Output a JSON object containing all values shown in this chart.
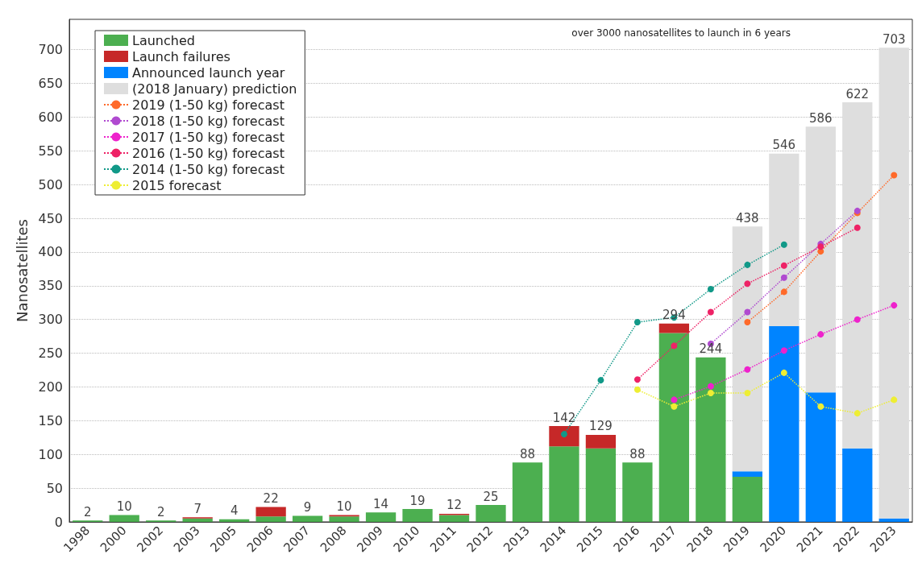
{
  "chart_data": {
    "type": "bar",
    "title": "over 3000 nanosatellites to launch in 6 years",
    "ylabel": "Nanosatellites",
    "categories": [
      "1998",
      "2000",
      "2002",
      "2003",
      "2005",
      "2006",
      "2007",
      "2008",
      "2009",
      "2010",
      "2011",
      "2012",
      "2013",
      "2014",
      "2015",
      "2016",
      "2017",
      "2018",
      "2019",
      "2020",
      "2021",
      "2022",
      "2023"
    ],
    "stacked": true,
    "series": [
      {
        "name": "Launched",
        "color": "#4caf50",
        "values": [
          2,
          10,
          2,
          5,
          4,
          8,
          9,
          8,
          14,
          19,
          10,
          25,
          88,
          112,
          109,
          88,
          280,
          244,
          67,
          null,
          null,
          null,
          null
        ]
      },
      {
        "name": "Launch failures",
        "color": "#c62828",
        "values": [
          null,
          null,
          null,
          2,
          null,
          14,
          null,
          2,
          null,
          null,
          2,
          null,
          null,
          30,
          20,
          null,
          14,
          null,
          null,
          null,
          null,
          null,
          null
        ]
      },
      {
        "name": "Announced launch year",
        "color": "#0084ff",
        "values": [
          null,
          null,
          null,
          null,
          null,
          null,
          null,
          null,
          null,
          null,
          null,
          null,
          null,
          null,
          null,
          null,
          null,
          null,
          8,
          290,
          192,
          109,
          5
        ]
      },
      {
        "name": "(2018 January) prediction",
        "color": "#dedede",
        "values": [
          null,
          null,
          null,
          null,
          null,
          null,
          null,
          null,
          null,
          null,
          null,
          null,
          null,
          null,
          null,
          null,
          null,
          null,
          363,
          256,
          394,
          513,
          698
        ]
      },
      {
        "name": "2019 (1-50 kg) forecast",
        "type": "line",
        "color": "#ff6a2a",
        "values": [
          null,
          null,
          null,
          null,
          null,
          null,
          null,
          null,
          null,
          null,
          null,
          null,
          null,
          null,
          null,
          null,
          null,
          null,
          296,
          341,
          401,
          458,
          514
        ]
      },
      {
        "name": "2018 (1-50 kg) forecast",
        "type": "line",
        "color": "#b04ad0",
        "values": [
          null,
          null,
          null,
          null,
          null,
          null,
          null,
          null,
          null,
          null,
          null,
          null,
          null,
          null,
          null,
          null,
          null,
          264,
          311,
          362,
          412,
          461,
          null
        ]
      },
      {
        "name": "2017 (1-50 kg) forecast",
        "type": "line",
        "color": "#ee22cc",
        "values": [
          null,
          null,
          null,
          null,
          null,
          null,
          null,
          null,
          null,
          null,
          null,
          null,
          null,
          null,
          null,
          null,
          181,
          201,
          226,
          254,
          278,
          300,
          321
        ]
      },
      {
        "name": "2016 (1-50 kg) forecast",
        "type": "line",
        "color": "#ee2266",
        "values": [
          null,
          null,
          null,
          null,
          null,
          null,
          null,
          null,
          null,
          null,
          null,
          null,
          null,
          null,
          null,
          211,
          261,
          311,
          353,
          380,
          408,
          436,
          null
        ]
      },
      {
        "name": "2014 (1-50 kg) forecast",
        "type": "line",
        "color": "#119988",
        "values": [
          null,
          null,
          null,
          null,
          null,
          null,
          null,
          null,
          null,
          null,
          null,
          null,
          null,
          130,
          210,
          296,
          303,
          345,
          381,
          411,
          null,
          null,
          null
        ]
      },
      {
        "name": "2015 forecast",
        "type": "line",
        "color": "#eeee33",
        "values": [
          null,
          null,
          null,
          null,
          null,
          null,
          null,
          null,
          null,
          null,
          null,
          null,
          null,
          null,
          null,
          196,
          171,
          191,
          191,
          221,
          171,
          161,
          181
        ]
      }
    ],
    "totals": [
      "2",
      "10",
      "2",
      "7",
      "4",
      "22",
      "9",
      "10",
      "14",
      "19",
      "12",
      "25",
      "88",
      "142",
      "129",
      "88",
      "294",
      "244",
      "438",
      "546",
      "586",
      "622",
      "703"
    ],
    "ylim": [
      0,
      745
    ],
    "yticks": [
      0,
      50,
      100,
      150,
      200,
      250,
      300,
      350,
      400,
      450,
      500,
      550,
      600,
      650,
      700
    ],
    "grid": "y",
    "legend": "top left",
    "marker": "circle",
    "line_style": "dotted"
  }
}
